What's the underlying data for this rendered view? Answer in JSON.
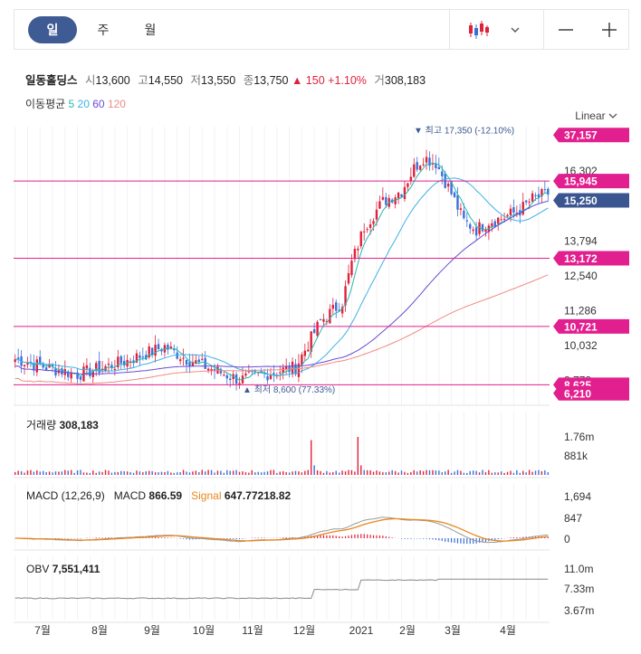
{
  "toolbar": {
    "periods": [
      "일",
      "주",
      "월"
    ],
    "active_period": "일",
    "chart_type_icon": "candlestick-icon",
    "minus": "—",
    "plus": "+"
  },
  "quote": {
    "name": "일동홀딩스",
    "open_label": "시",
    "open": "13,600",
    "high_label": "고",
    "high": "14,550",
    "low_label": "저",
    "low": "13,550",
    "close_label": "종",
    "close": "13,750",
    "change_arrow": "▲",
    "change": "150",
    "change_pct": "+1.10%",
    "volume_label": "거",
    "volume": "308,183"
  },
  "ma_legend": {
    "label": "이동평균",
    "periods": [
      "5",
      "20",
      "60",
      "120"
    ],
    "colors": [
      "#27b8b0",
      "#3fb0e6",
      "#6a4ad6",
      "#f08a85"
    ]
  },
  "scale_label": "Linear",
  "annotations": {
    "high": "▼ 최고 17,350 (-12.10%)",
    "low": "▲ 최저 8,600 (77.33%)"
  },
  "volume_panel": {
    "label": "거래량",
    "value": "308,183"
  },
  "macd_panel": {
    "label": "MACD (12,26,9)",
    "macd_label": "MACD",
    "macd_value": "866.59",
    "signal_label": "Signal",
    "signal_value": "647.77218.82"
  },
  "obv_panel": {
    "label": "OBV",
    "value": "7,551,411"
  },
  "chart_data": {
    "type": "candlestick",
    "price_axis_ticks": [
      "16,302",
      "13,794",
      "12,540",
      "11,286",
      "10,032",
      "8,778"
    ],
    "price_badges": [
      {
        "value": "37,157",
        "color": "#e21f8e",
        "price": 17600
      },
      {
        "value": "15,945",
        "color": "#e21f8e",
        "price": 15945
      },
      {
        "value": "15,250",
        "color": "#3b5591",
        "price": 15250
      },
      {
        "value": "13,172",
        "color": "#e21f8e",
        "price": 13172
      },
      {
        "value": "10,721",
        "color": "#e21f8e",
        "price": 10721
      },
      {
        "value": "8,625",
        "color": "#e21f8e",
        "price": 8625
      },
      {
        "value": "6,210",
        "color": "#e21f8e",
        "price": 8320
      }
    ],
    "horizontal_lines": [
      15945,
      13172,
      10721,
      8625
    ],
    "price_range": [
      8150,
      17900
    ],
    "x_labels": [
      "7월",
      "8월",
      "9월",
      "10월",
      "11월",
      "12월",
      "2021",
      "2월",
      "3월",
      "4월"
    ],
    "price_keypoints": [
      [
        0,
        9550
      ],
      [
        12,
        9200
      ],
      [
        20,
        9000
      ],
      [
        35,
        9450
      ],
      [
        48,
        10000
      ],
      [
        55,
        9550
      ],
      [
        65,
        9100
      ],
      [
        72,
        8800
      ],
      [
        82,
        9050
      ],
      [
        90,
        9250
      ],
      [
        95,
        10300
      ],
      [
        98,
        10900
      ],
      [
        105,
        11600
      ],
      [
        108,
        13000
      ],
      [
        112,
        14300
      ],
      [
        118,
        15200
      ],
      [
        124,
        15600
      ],
      [
        128,
        16400
      ],
      [
        131,
        16800
      ],
      [
        135,
        16600
      ],
      [
        140,
        15500
      ],
      [
        144,
        14500
      ],
      [
        148,
        14200
      ],
      [
        152,
        14500
      ],
      [
        156,
        14600
      ],
      [
        162,
        14900
      ],
      [
        166,
        15300
      ],
      [
        171,
        15500
      ]
    ],
    "volume_axis_ticks": [
      "1.76m",
      "881k"
    ],
    "macd_axis_ticks": [
      "1,694",
      "847",
      "0"
    ],
    "obv_axis_ticks": [
      "11.0m",
      "7.33m",
      "3.67m"
    ]
  }
}
